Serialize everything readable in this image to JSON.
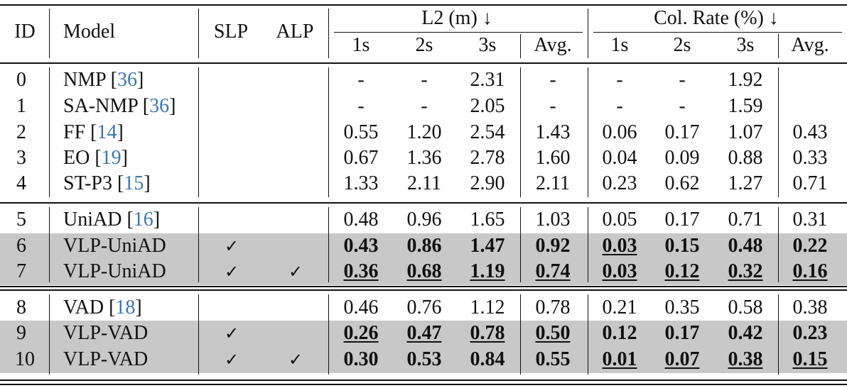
{
  "header": {
    "id": "ID",
    "model": "Model",
    "slp": "SLP",
    "alp": "ALP",
    "l2_group": "L2 (m) ↓",
    "col_group": "Col. Rate (%) ↓",
    "sub": [
      "1s",
      "2s",
      "3s",
      "Avg.",
      "1s",
      "2s",
      "3s",
      "Avg."
    ]
  },
  "check_mark": "✓",
  "rows": [
    {
      "id": "0",
      "model": "NMP",
      "ref": "36",
      "slp": false,
      "alp": false,
      "hl": false,
      "l2": [
        {
          "v": "-"
        },
        {
          "v": "-"
        },
        {
          "v": "2.31"
        },
        {
          "v": "-"
        }
      ],
      "col": [
        {
          "v": "-"
        },
        {
          "v": "-"
        },
        {
          "v": "1.92"
        },
        {
          "v": ""
        }
      ]
    },
    {
      "id": "1",
      "model": "SA-NMP",
      "ref": "36",
      "slp": false,
      "alp": false,
      "hl": false,
      "l2": [
        {
          "v": "-"
        },
        {
          "v": "-"
        },
        {
          "v": "2.05"
        },
        {
          "v": "-"
        }
      ],
      "col": [
        {
          "v": "-"
        },
        {
          "v": "-"
        },
        {
          "v": "1.59"
        },
        {
          "v": ""
        }
      ]
    },
    {
      "id": "2",
      "model": "FF",
      "ref": "14",
      "slp": false,
      "alp": false,
      "hl": false,
      "l2": [
        {
          "v": "0.55"
        },
        {
          "v": "1.20"
        },
        {
          "v": "2.54"
        },
        {
          "v": "1.43"
        }
      ],
      "col": [
        {
          "v": "0.06"
        },
        {
          "v": "0.17"
        },
        {
          "v": "1.07"
        },
        {
          "v": "0.43"
        }
      ]
    },
    {
      "id": "3",
      "model": "EO",
      "ref": "19",
      "slp": false,
      "alp": false,
      "hl": false,
      "l2": [
        {
          "v": "0.67"
        },
        {
          "v": "1.36"
        },
        {
          "v": "2.78"
        },
        {
          "v": "1.60"
        }
      ],
      "col": [
        {
          "v": "0.04"
        },
        {
          "v": "0.09"
        },
        {
          "v": "0.88"
        },
        {
          "v": "0.33"
        }
      ]
    },
    {
      "id": "4",
      "model": "ST-P3",
      "ref": "15",
      "slp": false,
      "alp": false,
      "hl": false,
      "l2": [
        {
          "v": "1.33"
        },
        {
          "v": "2.11"
        },
        {
          "v": "2.90"
        },
        {
          "v": "2.11"
        }
      ],
      "col": [
        {
          "v": "0.23"
        },
        {
          "v": "0.62"
        },
        {
          "v": "1.27"
        },
        {
          "v": "0.71"
        }
      ]
    },
    {
      "id": "5",
      "model": "UniAD",
      "ref": "16",
      "slp": false,
      "alp": false,
      "hl": false,
      "l2": [
        {
          "v": "0.48"
        },
        {
          "v": "0.96"
        },
        {
          "v": "1.65"
        },
        {
          "v": "1.03"
        }
      ],
      "col": [
        {
          "v": "0.05"
        },
        {
          "v": "0.17"
        },
        {
          "v": "0.71"
        },
        {
          "v": "0.31"
        }
      ]
    },
    {
      "id": "6",
      "model": "VLP-UniAD",
      "ref": "",
      "slp": true,
      "alp": false,
      "hl": true,
      "l2": [
        {
          "v": "0.43",
          "b": true
        },
        {
          "v": "0.86",
          "b": true
        },
        {
          "v": "1.47",
          "b": true
        },
        {
          "v": "0.92",
          "b": true
        }
      ],
      "col": [
        {
          "v": "0.03",
          "b": true,
          "u": true
        },
        {
          "v": "0.15",
          "b": true
        },
        {
          "v": "0.48",
          "b": true
        },
        {
          "v": "0.22",
          "b": true
        }
      ]
    },
    {
      "id": "7",
      "model": "VLP-UniAD",
      "ref": "",
      "slp": true,
      "alp": true,
      "hl": true,
      "l2": [
        {
          "v": "0.36",
          "b": true,
          "u": true
        },
        {
          "v": "0.68",
          "b": true,
          "u": true
        },
        {
          "v": "1.19",
          "b": true,
          "u": true
        },
        {
          "v": "0.74",
          "b": true,
          "u": true
        }
      ],
      "col": [
        {
          "v": "0.03",
          "b": true,
          "u": true
        },
        {
          "v": "0.12",
          "b": true,
          "u": true
        },
        {
          "v": "0.32",
          "b": true,
          "u": true
        },
        {
          "v": "0.16",
          "b": true,
          "u": true
        }
      ]
    },
    {
      "id": "8",
      "model": "VAD",
      "ref": "18",
      "slp": false,
      "alp": false,
      "hl": false,
      "l2": [
        {
          "v": "0.46"
        },
        {
          "v": "0.76"
        },
        {
          "v": "1.12"
        },
        {
          "v": "0.78"
        }
      ],
      "col": [
        {
          "v": "0.21"
        },
        {
          "v": "0.35"
        },
        {
          "v": "0.58"
        },
        {
          "v": "0.38"
        }
      ]
    },
    {
      "id": "9",
      "model": "VLP-VAD",
      "ref": "",
      "slp": true,
      "alp": false,
      "hl": true,
      "l2": [
        {
          "v": "0.26",
          "b": true,
          "u": true
        },
        {
          "v": "0.47",
          "b": true,
          "u": true
        },
        {
          "v": "0.78",
          "b": true,
          "u": true
        },
        {
          "v": "0.50",
          "b": true,
          "u": true
        }
      ],
      "col": [
        {
          "v": "0.12",
          "b": true
        },
        {
          "v": "0.17",
          "b": true
        },
        {
          "v": "0.42",
          "b": true
        },
        {
          "v": "0.23",
          "b": true
        }
      ]
    },
    {
      "id": "10",
      "model": "VLP-VAD",
      "ref": "",
      "slp": true,
      "alp": true,
      "hl": true,
      "l2": [
        {
          "v": "0.30",
          "b": true
        },
        {
          "v": "0.53",
          "b": true
        },
        {
          "v": "0.84",
          "b": true
        },
        {
          "v": "0.55",
          "b": true
        }
      ],
      "col": [
        {
          "v": "0.01",
          "b": true,
          "u": true
        },
        {
          "v": "0.07",
          "b": true,
          "u": true
        },
        {
          "v": "0.38",
          "b": true,
          "u": true
        },
        {
          "v": "0.15",
          "b": true,
          "u": true
        }
      ]
    }
  ]
}
